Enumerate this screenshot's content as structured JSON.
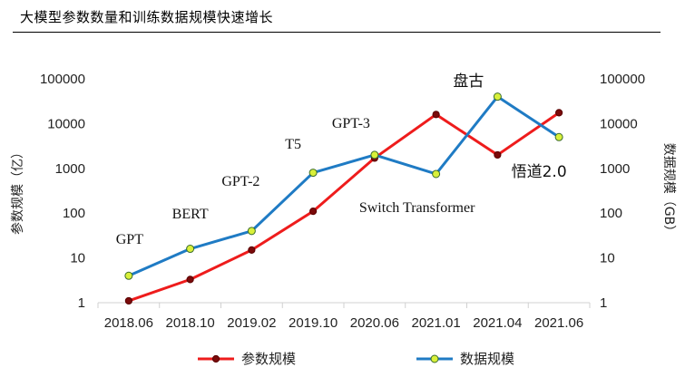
{
  "header": {
    "title": "大模型参数数量和训练数据规模快速增长"
  },
  "chart_data": {
    "type": "line",
    "title": "",
    "categories": [
      "2018.06",
      "2018.10",
      "2019.02",
      "2019.10",
      "2020.06",
      "2021.01",
      "2021.04",
      "2021.06"
    ],
    "y_left": {
      "label": "参数规模（亿）",
      "scale": "log",
      "ticks": [
        "1",
        "10",
        "100",
        "1000",
        "10000",
        "100000"
      ],
      "range": [
        1,
        100000
      ]
    },
    "y_right": {
      "label": "数据规模（GB）",
      "scale": "log",
      "ticks": [
        "1",
        "10",
        "100",
        "1000",
        "10000",
        "100000"
      ],
      "range": [
        1,
        100000
      ]
    },
    "series": [
      {
        "name": "参数规模",
        "color": "#ee1c1c",
        "marker_fill": "#7a0a0a",
        "axis": "left",
        "values": [
          1.1,
          3.3,
          15,
          110,
          1700,
          16000,
          2000,
          17500
        ]
      },
      {
        "name": "数据规模",
        "color": "#1f7bc4",
        "marker_fill": "#d9f03a",
        "axis": "right",
        "values": [
          4,
          16,
          40,
          800,
          2000,
          750,
          40000,
          5000
        ]
      }
    ],
    "annotations": [
      {
        "text": "GPT",
        "category": "2018.06"
      },
      {
        "text": "BERT",
        "category": "2018.10"
      },
      {
        "text": "GPT-2",
        "category": "2019.02"
      },
      {
        "text": "T5",
        "category": "2019.10"
      },
      {
        "text": "GPT-3",
        "category": "2020.06"
      },
      {
        "text": "Switch Transformer",
        "category": "2021.01"
      },
      {
        "text": "盘古",
        "category": "2021.04"
      },
      {
        "text": "悟道2.0",
        "category": "2021.06"
      }
    ],
    "legend_position": "bottom",
    "grid": false
  }
}
